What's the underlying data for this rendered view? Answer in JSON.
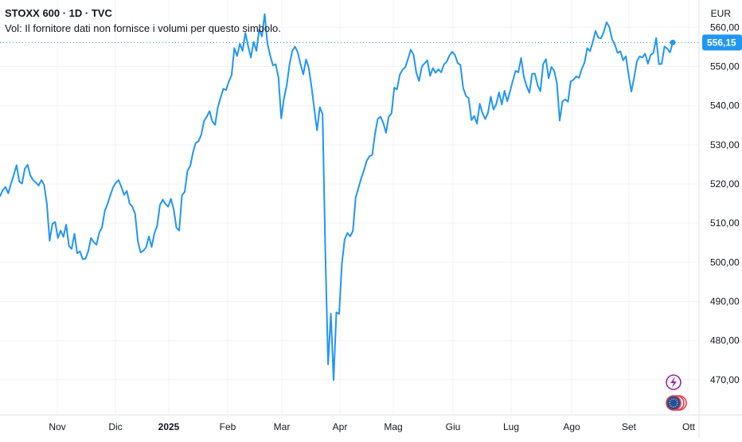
{
  "header": {
    "symbol_line": "STOXX 600 · 1D · TVC",
    "volume_note": "Vol: Il fornitore dati non fornisce i volumi per questo simbolo."
  },
  "currency_button": "EUR",
  "last_price_label": "556,15",
  "colors": {
    "line": "#2196f3",
    "grid": "#f0f3fa",
    "price_badge": "#2196f3",
    "text": "#131722",
    "event_lightning": "#9c27b0",
    "event_flag": "#f23645"
  },
  "icons": [
    "lightning-icon",
    "eu-flag-icon"
  ],
  "chart_data": {
    "type": "line",
    "title": "STOXX 600 · 1D · TVC",
    "xlabel": "",
    "ylabel": "",
    "ylim": [
      461,
      567
    ],
    "y_ticks": [
      470,
      480,
      490,
      500,
      510,
      520,
      530,
      540,
      550,
      560
    ],
    "y_tick_labels": [
      "470,00",
      "480,00",
      "490,00",
      "500,00",
      "510,00",
      "520,00",
      "530,00",
      "540,00",
      "550,00",
      "560,00"
    ],
    "x_ticks": [
      "Nov",
      "Dic",
      "2025",
      "Feb",
      "Mar",
      "Apr",
      "Mag",
      "Giu",
      "Lug",
      "Ago",
      "Set",
      "Ott"
    ],
    "last_value": 556.15,
    "grid": true,
    "series": [
      {
        "values": [
          516.8,
          518.5,
          519.2,
          517.6,
          520.1,
          522.3,
          524.8,
          520.6,
          520.1,
          523.9,
          524.9,
          522.2,
          521.0,
          520.4,
          519.6,
          521.0,
          519.8,
          514.9,
          505.5,
          509.8,
          510.3,
          506.2,
          508.1,
          506.5,
          509.6,
          504.2,
          503.4,
          507.3,
          502.3,
          502.8,
          500.8,
          500.9,
          502.8,
          506.2,
          505.1,
          504.5,
          507.6,
          508.9,
          513.1,
          514.9,
          517.1,
          519.1,
          520.3,
          521.0,
          519.3,
          517.2,
          518.2,
          515.0,
          514.2,
          512.4,
          505.4,
          502.5,
          503.0,
          503.8,
          506.6,
          503.9,
          507.4,
          509.3,
          514.6,
          516.0,
          514.9,
          514.2,
          516.2,
          513.5,
          508.8,
          508.1,
          517.1,
          518.0,
          523.4,
          524.6,
          528.1,
          530.5,
          530.9,
          532.6,
          536.1,
          537.2,
          538.6,
          536.0,
          535.1,
          539.6,
          542.0,
          544.3,
          544.0,
          546.2,
          547.8,
          554.7,
          552.7,
          555.8,
          554.0,
          558.6,
          555.2,
          552.3,
          556.3,
          554.0,
          559.5,
          557.7,
          563.4,
          555.9,
          552.8,
          550.3,
          550.6,
          547.2,
          536.8,
          541.9,
          545.2,
          550.5,
          554.0,
          555.1,
          553.6,
          550.6,
          548.0,
          551.8,
          549.6,
          544.8,
          539.1,
          533.7,
          539.6,
          537.8,
          502.6,
          473.9,
          486.9,
          469.9,
          487.2,
          486.8,
          499.6,
          505.8,
          507.5,
          506.6,
          508.0,
          516.5,
          519.0,
          521.4,
          523.5,
          525.9,
          527.1,
          527.4,
          532.7,
          536.6,
          537.2,
          535.6,
          533.1,
          537.2,
          538.0,
          544.6,
          544.2,
          547.9,
          549.2,
          549.8,
          552.0,
          554.3,
          553.0,
          548.4,
          546.3,
          550.0,
          550.8,
          551.6,
          547.6,
          549.6,
          548.4,
          549.3,
          548.5,
          550.5,
          551.2,
          552.8,
          553.8,
          553.0,
          550.9,
          550.4,
          544.5,
          542.5,
          541.9,
          536.3,
          537.4,
          535.4,
          540.5,
          538.1,
          536.6,
          538.2,
          542.3,
          539.0,
          540.4,
          543.4,
          540.3,
          543.8,
          541.1,
          543.7,
          546.4,
          548.9,
          548.5,
          552.2,
          547.4,
          545.0,
          543.3,
          548.1,
          548.2,
          545.2,
          543.7,
          550.6,
          551.9,
          547.0,
          549.9,
          548.9,
          545.7,
          536.2,
          541.1,
          541.6,
          541.0,
          546.2,
          546.6,
          547.5,
          547.1,
          549.4,
          551.0,
          554.7,
          553.9,
          556.3,
          559.1,
          557.4,
          557.2,
          558.9,
          561.3,
          560.1,
          557.0,
          555.6,
          553.5,
          553.9,
          551.6,
          552.6,
          547.8,
          543.6,
          547.2,
          551.3,
          552.6,
          552.3,
          553.3,
          550.7,
          553.0,
          553.5,
          557.3,
          550.6,
          550.7,
          555.1,
          554.6,
          553.6,
          556.15
        ]
      }
    ]
  }
}
